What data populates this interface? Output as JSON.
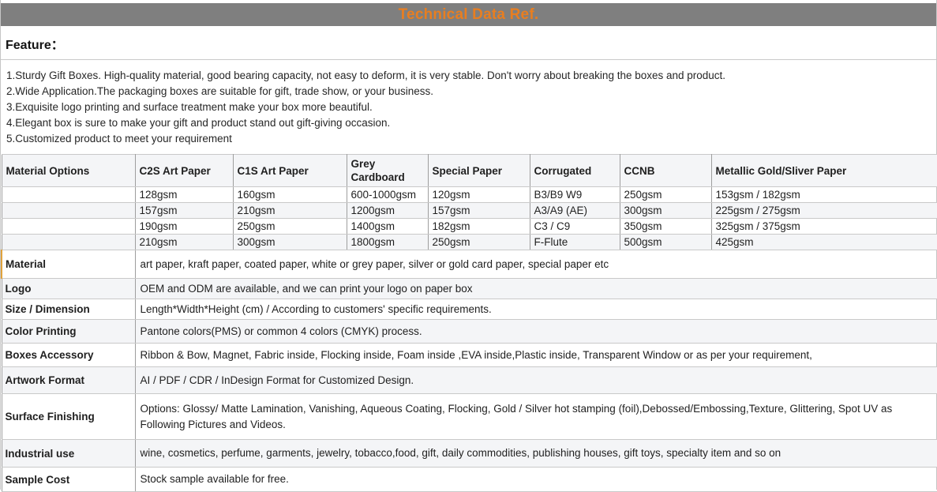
{
  "title_bar": {
    "title": "Technical Data Ref."
  },
  "feature": {
    "heading": "Feature：",
    "items": [
      "1.Sturdy Gift Boxes. High-quality material, good bearing capacity, not easy to deform, it is very stable. Don't worry about breaking the boxes and product.",
      "2.Wide Application.The packaging boxes are suitable for gift, trade show, or your business.",
      "3.Exquisite logo printing and surface treatment make your box more beautiful.",
      "4.Elegant box is sure to make your gift and product stand out gift-giving occasion.",
      "5.Customized product to meet your requirement"
    ]
  },
  "materials_table": {
    "headers": [
      "Material Options",
      "C2S Art Paper",
      "C1S Art Paper",
      "Grey Cardboard",
      "Special Paper",
      "Corrugated",
      "CCNB",
      "Metallic Gold/Sliver Paper"
    ],
    "rows": [
      [
        "",
        "128gsm",
        "160gsm",
        "600-1000gsm",
        "120gsm",
        "B3/B9 W9",
        "250gsm",
        "153gsm / 182gsm"
      ],
      [
        "",
        "157gsm",
        "210gsm",
        "1200gsm",
        "157gsm",
        "A3/A9 (AE)",
        "300gsm",
        "225gsm / 275gsm"
      ],
      [
        "",
        "190gsm",
        "250gsm",
        "1400gsm",
        "182gsm",
        "C3 / C9",
        "350gsm",
        "325gsm / 375gsm"
      ],
      [
        "",
        "210gsm",
        "300gsm",
        "1800gsm",
        "250gsm",
        "F-Flute",
        "500gsm",
        "425gsm"
      ]
    ]
  },
  "spec_rows": [
    {
      "label": "Material",
      "value": "art paper, kraft paper, coated paper, white or grey paper, silver or gold card paper, special paper etc"
    },
    {
      "label": "Logo",
      "value": "OEM and ODM are available, and we can print your logo on paper box"
    },
    {
      "label": "Size / Dimension",
      "value": "Length*Width*Height (cm) / According to customers' specific requirements."
    },
    {
      "label": "Color Printing",
      "value": "Pantone colors(PMS) or common 4 colors (CMYK) process."
    },
    {
      "label": "Boxes Accessory",
      "value": "Ribbon & Bow, Magnet, Fabric inside, Flocking inside, Foam inside ,EVA inside,Plastic inside, Transparent Window or as per your requirement,"
    },
    {
      "label": "Artwork Format",
      "value": "AI / PDF / CDR / InDesign Format for Customized Design."
    },
    {
      "label": "Surface Finishing",
      "value": "Options: Glossy/ Matte Lamination, Vanishing, Aqueous Coating, Flocking, Gold / Silver hot stamping (foil),Debossed/Embossing,Texture, Glittering, Spot UV as Following Pictures and Videos."
    },
    {
      "label": "Industrial use",
      "value": "wine, cosmetics, perfume, garments, jewelry, tobacco,food, gift, daily commodities, publishing houses, gift toys, specialty item and so on"
    },
    {
      "label": "Sample Cost",
      "value": "Stock sample available for free."
    }
  ],
  "colors": {
    "title_bar_bg": "#7f7f7f",
    "title_text": "#e87e20",
    "alt_row_bg": "#f4f5f7",
    "border_vertical": "#9e9e9e",
    "border_horizontal": "#c9c9c9",
    "accent_left_marker": "#e0a23c"
  }
}
